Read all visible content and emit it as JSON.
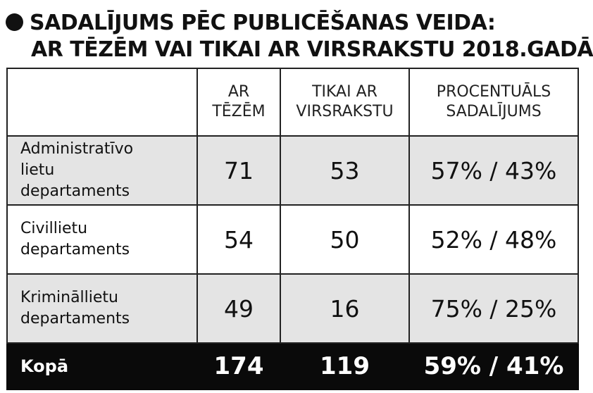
{
  "title": {
    "line1": "SADALĪJUMS PĒC PUBLICĒŠANAS VEIDA:",
    "line2": "AR TĒZĒM VAI TIKAI AR VIRSRAKSTU 2018.GADĀ"
  },
  "columns": {
    "col1": "",
    "col2_l1": "AR",
    "col2_l2": "TĒZĒM",
    "col3_l1": "TIKAI AR",
    "col3_l2": "VIRSRAKSTU",
    "col4_l1": "PROCENTUĀLS",
    "col4_l2": "SADALĪJUMS"
  },
  "rows": [
    {
      "l1": "Administratīvo",
      "l2": "lietu",
      "l3": "departaments",
      "with_theses": "71",
      "title_only": "53",
      "percent": "57% / 43%"
    },
    {
      "l1": "Civillietu",
      "l2": "departaments",
      "with_theses": "54",
      "title_only": "50",
      "percent": "52% / 48%"
    },
    {
      "l1": "Krimināllietu",
      "l2": "departaments",
      "with_theses": "49",
      "title_only": "16",
      "percent": "75% / 25%"
    }
  ],
  "total": {
    "label": "Kopā",
    "with_theses": "174",
    "title_only": "119",
    "percent": "59% / 41%"
  }
}
